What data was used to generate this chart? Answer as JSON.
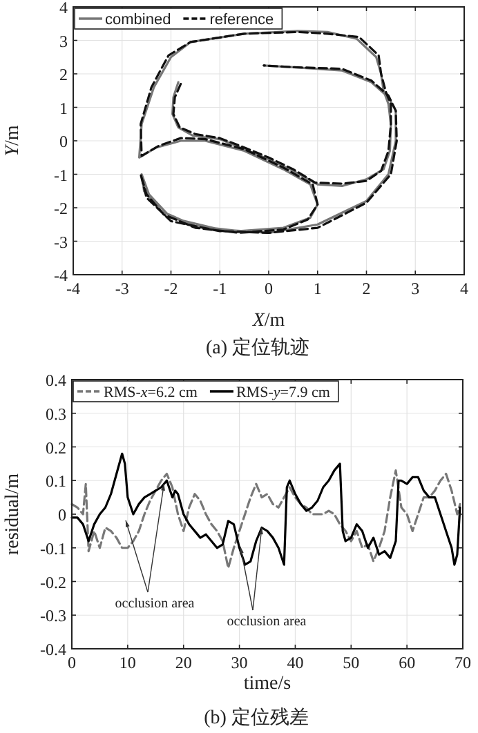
{
  "chart_data": [
    {
      "type": "line",
      "title": "(a) 定位轨迹",
      "xlabel": "*X*/m",
      "ylabel": "*Y*/m",
      "xlim": [
        -4,
        4
      ],
      "ylim": [
        -4,
        4
      ],
      "xticks": [
        -4,
        -3,
        -2,
        -1,
        0,
        1,
        2,
        3,
        4
      ],
      "yticks": [
        -4,
        -3,
        -2,
        -1,
        0,
        1,
        2,
        3,
        4
      ],
      "grid": true,
      "legend": "top left",
      "series": [
        {
          "name": "combined",
          "color": "#777777",
          "line_style": "solid",
          "x": [
            -1.85,
            -1.95,
            -1.97,
            -1.85,
            -1.55,
            -1.0,
            -0.5,
            0.0,
            0.5,
            1.0,
            1.5,
            2.0,
            2.35,
            2.48,
            2.5,
            2.45,
            2.35,
            2.3,
            2.2,
            1.8,
            1.2,
            0.6,
            -0.5,
            -1.6,
            -2.0,
            -2.35,
            -2.6,
            -2.65,
            -2.3,
            -1.8,
            -1.3,
            -0.5,
            0.3,
            0.85,
            1.0,
            0.85,
            0.3,
            -0.6,
            -1.5,
            -2.2,
            -2.55,
            -2.6,
            -2.45,
            -2.0,
            -1.0,
            0.0,
            1.0,
            2.0,
            2.45,
            2.6,
            2.6,
            2.45,
            2.1,
            1.5,
            0.5,
            -0.1
          ],
          "values": [
            1.75,
            1.3,
            0.8,
            0.4,
            0.15,
            0.05,
            -0.25,
            -0.55,
            -0.9,
            -1.3,
            -1.35,
            -1.15,
            -0.85,
            -0.3,
            0.5,
            1.1,
            1.5,
            2.0,
            2.5,
            3.05,
            3.25,
            3.28,
            3.2,
            2.95,
            2.5,
            1.6,
            0.5,
            -0.5,
            -0.2,
            0.0,
            0.0,
            -0.3,
            -0.85,
            -1.3,
            -1.9,
            -2.3,
            -2.6,
            -2.7,
            -2.55,
            -2.1,
            -1.5,
            -1.0,
            -1.6,
            -2.3,
            -2.65,
            -2.75,
            -2.5,
            -1.8,
            -1.0,
            0.0,
            0.9,
            1.3,
            1.75,
            2.1,
            2.2,
            2.25
          ]
        },
        {
          "name": "reference",
          "color": "#111111",
          "line_style": "dashed",
          "x": [
            -1.8,
            -1.92,
            -1.95,
            -1.82,
            -1.5,
            -1.0,
            -0.5,
            0.0,
            0.5,
            0.95,
            1.5,
            2.0,
            2.3,
            2.45,
            2.5,
            2.5,
            2.4,
            2.3,
            2.25,
            1.85,
            1.2,
            0.6,
            -0.5,
            -1.6,
            -2.05,
            -2.4,
            -2.62,
            -2.6,
            -2.25,
            -1.8,
            -1.3,
            -0.5,
            0.3,
            0.9,
            1.0,
            0.8,
            0.3,
            -0.6,
            -1.5,
            -2.15,
            -2.5,
            -2.62,
            -2.5,
            -2.0,
            -1.0,
            0.0,
            1.0,
            2.0,
            2.5,
            2.62,
            2.6,
            2.45,
            2.1,
            1.5,
            0.5,
            -0.1
          ],
          "values": [
            1.7,
            1.3,
            0.8,
            0.4,
            0.2,
            0.08,
            -0.2,
            -0.5,
            -0.85,
            -1.25,
            -1.28,
            -1.2,
            -0.9,
            -0.3,
            0.5,
            1.1,
            1.45,
            2.0,
            2.55,
            3.1,
            3.2,
            3.25,
            3.2,
            2.95,
            2.55,
            1.6,
            0.5,
            -0.45,
            -0.15,
            0.08,
            0.05,
            -0.25,
            -0.8,
            -1.3,
            -1.9,
            -2.35,
            -2.65,
            -2.75,
            -2.6,
            -2.2,
            -1.6,
            -1.0,
            -1.7,
            -2.4,
            -2.7,
            -2.75,
            -2.6,
            -1.85,
            -1.0,
            0.0,
            0.9,
            1.35,
            1.8,
            2.15,
            2.2,
            2.25
          ]
        }
      ]
    },
    {
      "type": "line",
      "title": "(b) 定位残差",
      "xlabel": "time/s",
      "ylabel": "residual/m",
      "xlim": [
        0,
        70
      ],
      "ylim": [
        -0.4,
        0.4
      ],
      "xticks": [
        0,
        10,
        20,
        30,
        40,
        50,
        60,
        70
      ],
      "yticks": [
        -0.4,
        -0.3,
        -0.2,
        -0.1,
        0,
        0.1,
        0.2,
        0.3,
        0.4
      ],
      "grid": true,
      "legend": "top left",
      "annotations": [
        {
          "text": "occlusion area",
          "x": 16.5,
          "y": 0.09
        },
        {
          "text": "occlusion area",
          "x": 34,
          "y": -0.04
        }
      ],
      "series": [
        {
          "name": "RMS-*x*=6.2 cm",
          "color": "#777777",
          "line_style": "dashed",
          "x": [
            0,
            1,
            2,
            2.5,
            3,
            4,
            5,
            6,
            7,
            8,
            9,
            10,
            11,
            12,
            13,
            14,
            15,
            16,
            17,
            18,
            19,
            20,
            21,
            22,
            23,
            24,
            25,
            26,
            27,
            28,
            29,
            30,
            31,
            32,
            33,
            34,
            35,
            36,
            37,
            38,
            39,
            40,
            41,
            42,
            43,
            44,
            45,
            46,
            47,
            48,
            49,
            50,
            51,
            52,
            53,
            54,
            55,
            56,
            57,
            58,
            59,
            60,
            61,
            62,
            63,
            64,
            65,
            66,
            67,
            68,
            69,
            69.5
          ],
          "values": [
            0.03,
            0.02,
            0.0,
            0.09,
            -0.11,
            -0.05,
            -0.1,
            -0.04,
            -0.05,
            -0.07,
            -0.1,
            -0.1,
            -0.08,
            -0.05,
            0.0,
            0.04,
            0.07,
            0.1,
            0.12,
            0.08,
            0.0,
            -0.05,
            0.02,
            0.06,
            0.04,
            0.0,
            -0.03,
            -0.05,
            -0.08,
            -0.16,
            -0.1,
            -0.05,
            0.0,
            0.05,
            0.09,
            0.05,
            0.06,
            0.03,
            0.02,
            0.05,
            0.08,
            0.05,
            0.03,
            0.02,
            0.0,
            0.0,
            0.0,
            0.01,
            0.0,
            -0.03,
            -0.05,
            -0.08,
            -0.05,
            -0.1,
            -0.09,
            -0.14,
            -0.1,
            -0.05,
            0.05,
            0.13,
            0.02,
            0.0,
            -0.05,
            0.0,
            0.05,
            0.05,
            0.07,
            0.1,
            0.12,
            0.07,
            0.0,
            0.03
          ]
        },
        {
          "name": "RMS-*y*=7.9 cm",
          "color": "#000000",
          "line_style": "solid",
          "x": [
            0,
            1,
            2,
            3,
            4,
            5,
            6,
            7,
            8,
            9,
            9.5,
            10,
            11,
            12,
            13,
            14,
            15,
            16,
            17,
            18,
            18.5,
            19,
            20,
            21,
            22,
            23,
            24,
            25,
            26,
            27,
            28,
            29,
            30,
            31,
            32,
            33,
            34,
            35,
            36,
            37,
            38,
            38.5,
            39,
            40,
            41,
            42,
            43,
            44,
            45,
            46,
            47,
            48,
            48.5,
            49,
            50,
            51,
            52,
            53,
            54,
            55,
            56,
            57,
            58,
            58.5,
            59,
            60,
            61,
            62,
            63,
            64,
            65,
            66,
            67,
            68,
            68.5,
            69,
            69.5
          ],
          "values": [
            -0.01,
            -0.01,
            -0.03,
            -0.08,
            -0.03,
            0.0,
            0.02,
            0.06,
            0.12,
            0.18,
            0.15,
            0.05,
            0.0,
            0.03,
            0.05,
            0.06,
            0.07,
            0.08,
            0.1,
            0.05,
            0.07,
            0.06,
            0.0,
            -0.03,
            -0.05,
            -0.07,
            -0.06,
            -0.08,
            -0.1,
            -0.09,
            -0.02,
            -0.03,
            -0.1,
            -0.15,
            -0.14,
            -0.08,
            -0.04,
            -0.05,
            -0.07,
            -0.1,
            -0.15,
            0.08,
            0.1,
            0.06,
            0.03,
            0.01,
            0.02,
            0.04,
            0.08,
            0.1,
            0.13,
            0.15,
            -0.05,
            -0.08,
            -0.07,
            -0.03,
            -0.05,
            -0.1,
            -0.07,
            -0.12,
            -0.11,
            -0.13,
            -0.08,
            0.1,
            0.1,
            0.09,
            0.11,
            0.11,
            0.07,
            0.05,
            0.05,
            0.0,
            -0.05,
            -0.1,
            -0.15,
            -0.12,
            0.02
          ]
        }
      ]
    }
  ]
}
